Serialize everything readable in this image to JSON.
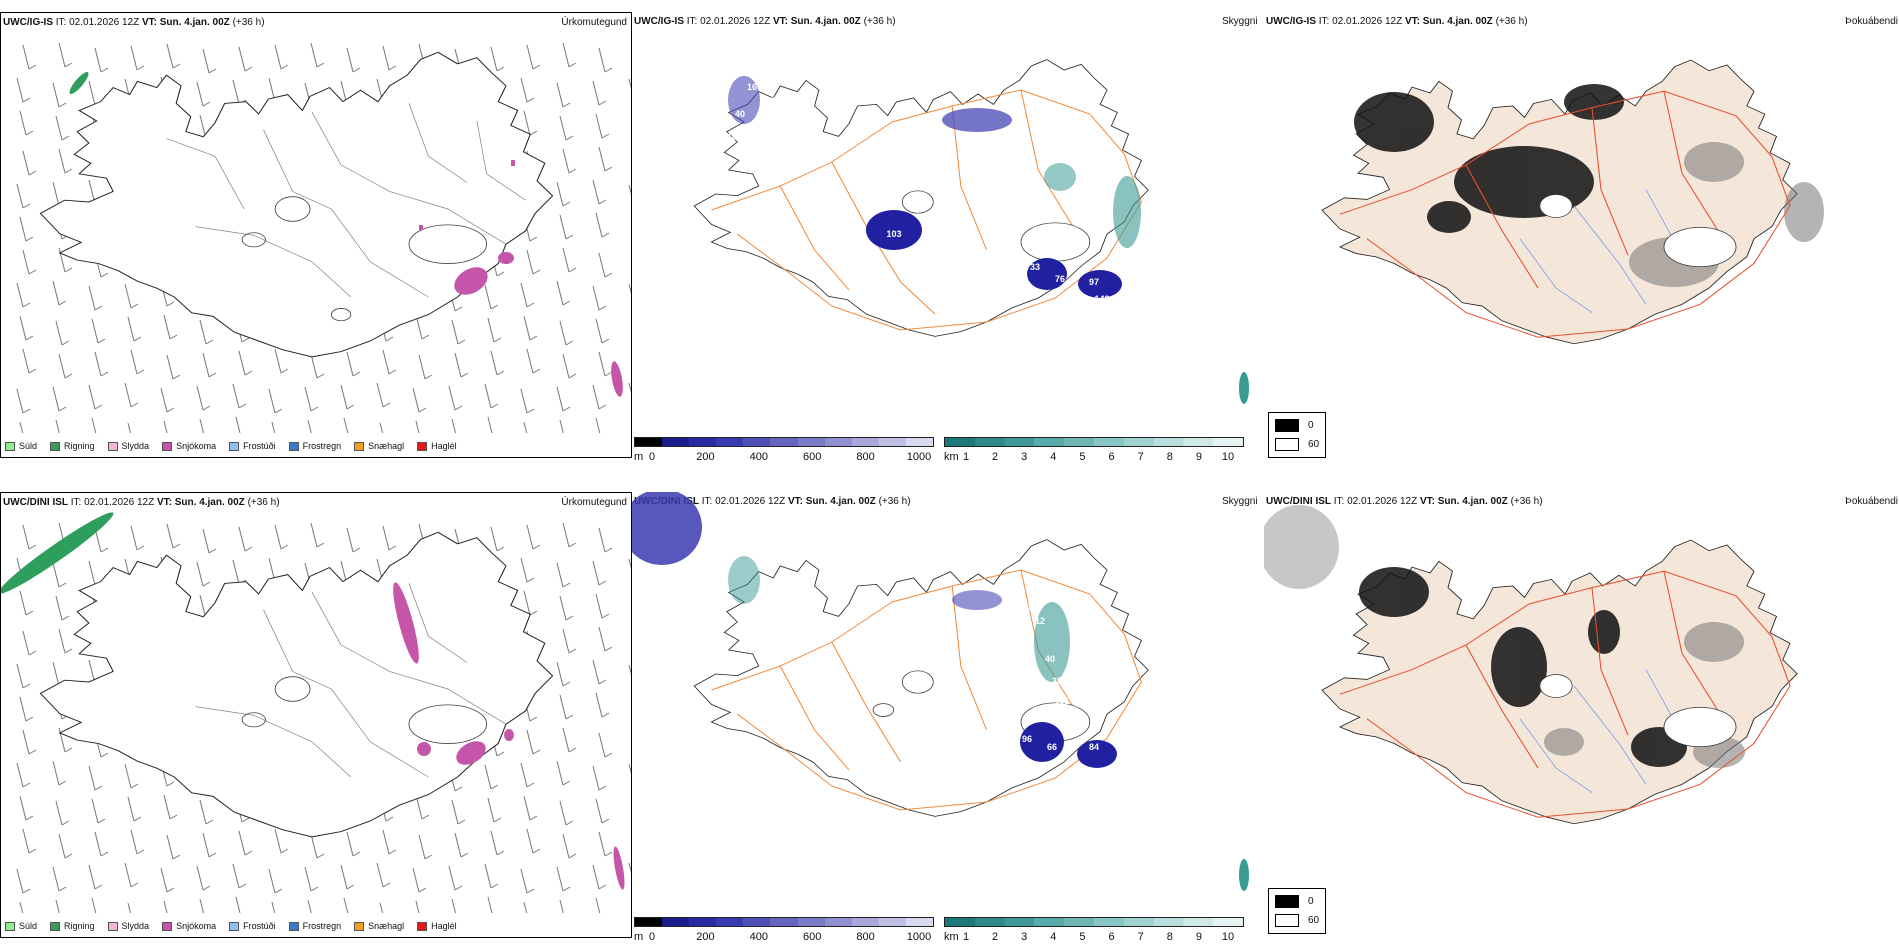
{
  "panels": {
    "top_left": {
      "model": "UWC/IG-IS",
      "it_label": "IT:",
      "it_value": "02.01.2026 12Z",
      "vt_label": "VT:",
      "vt_value": "Sun. 4.jan. 00Z",
      "lead": "(+36 h)",
      "right_title": "Úrkomutegund"
    },
    "top_middle": {
      "model": "UWC/IG-IS",
      "it_label": "IT:",
      "it_value": "02.01.2026 12Z",
      "vt_label": "VT:",
      "vt_value": "Sun. 4.jan. 00Z",
      "lead": "(+36 h)",
      "right_title": "Skyggni",
      "labels": [
        "16",
        "56",
        "40",
        "10",
        "40",
        "103",
        "90",
        "38",
        "23",
        "33",
        "76",
        "97",
        "142",
        "25"
      ]
    },
    "top_right": {
      "model": "UWC/IG-IS",
      "it_label": "IT:",
      "it_value": "02.01.2026 12Z",
      "vt_label": "VT:",
      "vt_value": "Sun. 4.jan. 00Z",
      "lead": "(+36 h)",
      "right_title": "Þokuábendi"
    },
    "bottom_left": {
      "model": "UWC/DINI ISL",
      "it_label": "IT:",
      "it_value": "02.01.2026 12Z",
      "vt_label": "VT:",
      "vt_value": "Sun. 4.jan. 00Z",
      "lead": "(+36 h)",
      "right_title": "Úrkomutegund"
    },
    "bottom_middle": {
      "model": "UWC/DINI ISL",
      "it_label": "IT:",
      "it_value": "02.01.2026 12Z",
      "vt_label": "VT:",
      "vt_value": "Sun. 4.jan. 00Z",
      "lead": "(+36 h)",
      "right_title": "Skyggni",
      "labels": [
        "16",
        "12",
        "40",
        "23",
        "101",
        "96",
        "66",
        "84"
      ]
    },
    "bottom_right": {
      "model": "UWC/DINI ISL",
      "it_label": "IT:",
      "it_value": "02.01.2026 12Z",
      "vt_label": "VT:",
      "vt_value": "Sun. 4.jan. 00Z",
      "lead": "(+36 h)",
      "right_title": "Þokuábendi"
    }
  },
  "precip_legend": [
    {
      "label": "Súld",
      "color": "#90ee90"
    },
    {
      "label": "Rigning",
      "color": "#3a9a5c"
    },
    {
      "label": "Slydda",
      "color": "#f4b6d8"
    },
    {
      "label": "Snjókoma",
      "color": "#c455a8"
    },
    {
      "label": "Frostúði",
      "color": "#8ec0f0"
    },
    {
      "label": "Frostregn",
      "color": "#3a78c8"
    },
    {
      "label": "Snæhagl",
      "color": "#f0a020"
    },
    {
      "label": "Haglél",
      "color": "#e01a1a"
    }
  ],
  "height_colorbar": {
    "unit": "m",
    "ticks": [
      "0",
      "200",
      "400",
      "600",
      "800",
      "1000"
    ],
    "colors": [
      "#000000",
      "#1a1a8c",
      "#2a2aa0",
      "#3a3ab0",
      "#5050b8",
      "#6666c0",
      "#7a7ac8",
      "#9090d0",
      "#a8a8dc",
      "#c0c0e6",
      "#d8d8f0"
    ]
  },
  "visibility_colorbar": {
    "unit": "km",
    "ticks": [
      "1",
      "2",
      "3",
      "4",
      "5",
      "6",
      "7",
      "8",
      "9",
      "10"
    ],
    "colors": [
      "#1e7878",
      "#2e8a88",
      "#409a98",
      "#58aaa8",
      "#70b8b6",
      "#88c6c4",
      "#a0d2d0",
      "#b8dedc",
      "#d0eae8",
      "#e8f4f4"
    ]
  },
  "fog_legend": {
    "dark_label": "0",
    "light_label": "60",
    "dark_color": "#000000",
    "light_color": "#ffffff"
  },
  "colors": {
    "land": "#f5e6da",
    "roads": "#f08a3c",
    "roads_fog": "#e85030",
    "rivers": "#7a9ae8",
    "snow": "#c455a8",
    "rain": "#2e9e5c",
    "visibility_low": "#2020a0",
    "fog_teal": "#3a9a94"
  }
}
